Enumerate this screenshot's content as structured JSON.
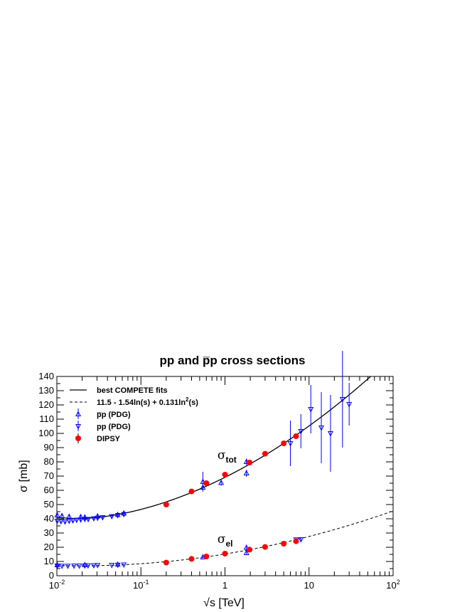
{
  "chart_data": {
    "type": "scatter",
    "title": "pp and p̅p cross sections",
    "xlabel": "√s [TeV]",
    "ylabel": "σ [mb]",
    "xscale": "log",
    "xlim": [
      0.01,
      100
    ],
    "ylim": [
      0,
      140
    ],
    "x_ticks": [
      {
        "value": 0.01,
        "base": "10",
        "exp": "-2"
      },
      {
        "value": 0.1,
        "base": "10",
        "exp": "-1"
      },
      {
        "value": 1,
        "base": "1",
        "exp": ""
      },
      {
        "value": 10,
        "base": "10",
        "exp": ""
      },
      {
        "value": 100,
        "base": "10",
        "exp": "2"
      }
    ],
    "y_ticks": [
      0,
      10,
      20,
      30,
      40,
      50,
      60,
      70,
      80,
      90,
      100,
      110,
      120,
      130,
      140
    ],
    "legend_position": "top-left",
    "legend": [
      {
        "label": "best COMPETE fits",
        "style": "solid-line"
      },
      {
        "label_main": "11.5 - 1.54ln(s) + 0.131ln",
        "label_sup": "2",
        "label_tail": "(s)",
        "style": "dashed-line"
      },
      {
        "label": "p̅p (PDG)",
        "style": "triangle-up"
      },
      {
        "label": "pp (PDG)",
        "style": "triangle-down"
      },
      {
        "label": "DIPSY",
        "style": "red-circle"
      }
    ],
    "annotations": [
      {
        "main": "σ",
        "sub": "tot",
        "x": 0.95,
        "y": 82
      },
      {
        "main": "σ",
        "sub": "el",
        "x": 0.95,
        "y": 23
      }
    ],
    "series": [
      {
        "name": "DIPSY",
        "color": "#ff0000",
        "marker": "circle",
        "points": [
          [
            0.2,
            50.0
          ],
          [
            0.4,
            59.2
          ],
          [
            0.6,
            65.0
          ],
          [
            1.0,
            71.0
          ],
          [
            1.96,
            79.5
          ],
          [
            3.0,
            85.7
          ],
          [
            5.0,
            93.0
          ],
          [
            7.0,
            98.0
          ],
          [
            0.2,
            9.2
          ],
          [
            0.4,
            11.8
          ],
          [
            0.6,
            13.5
          ],
          [
            1.0,
            15.5
          ],
          [
            1.96,
            18.3
          ],
          [
            3.0,
            20.2
          ],
          [
            5.0,
            22.5
          ],
          [
            7.0,
            24.2
          ]
        ]
      },
      {
        "name": "pp (PDG)",
        "color": "#0000ff",
        "marker": "triangle-down",
        "points": [
          {
            "x": 0.0101,
            "y": 38.5,
            "e": 1.2
          },
          {
            "x": 0.0112,
            "y": 38.2,
            "e": 1.0
          },
          {
            "x": 0.0125,
            "y": 38.0,
            "e": 1.0
          },
          {
            "x": 0.014,
            "y": 38.5,
            "e": 1.0
          },
          {
            "x": 0.0155,
            "y": 38.8,
            "e": 1.0
          },
          {
            "x": 0.0172,
            "y": 39.2,
            "e": 1.0
          },
          {
            "x": 0.0192,
            "y": 39.4,
            "e": 1.0
          },
          {
            "x": 0.0215,
            "y": 39.8,
            "e": 1.0
          },
          {
            "x": 0.0236,
            "y": 39.8,
            "e": 1.0
          },
          {
            "x": 0.0275,
            "y": 40.3,
            "e": 1.0
          },
          {
            "x": 0.0305,
            "y": 40.6,
            "e": 1.0
          },
          {
            "x": 0.035,
            "y": 41.0,
            "e": 1.0
          },
          {
            "x": 0.045,
            "y": 41.8,
            "e": 1.0
          },
          {
            "x": 0.053,
            "y": 42.5,
            "e": 1.0
          },
          {
            "x": 0.0627,
            "y": 43.2,
            "e": 1.5
          },
          {
            "x": 6.0,
            "y": 93.0,
            "e": 16.0
          },
          {
            "x": 8.0,
            "y": 101.5,
            "e": 12.0
          },
          {
            "x": 10.5,
            "y": 117.0,
            "e": 17.0
          },
          {
            "x": 14.0,
            "y": 104.0,
            "e": 25.0
          },
          {
            "x": 18.0,
            "y": 100.0,
            "e": 27.0
          },
          {
            "x": 25.0,
            "y": 124.0,
            "e": 34.0
          },
          {
            "x": 30.0,
            "y": 120.5,
            "e": 15.0
          },
          {
            "x": 0.0101,
            "y": 7.0,
            "e": 0.6
          },
          {
            "x": 0.0115,
            "y": 6.9,
            "e": 0.5
          },
          {
            "x": 0.0135,
            "y": 6.9,
            "e": 0.5
          },
          {
            "x": 0.016,
            "y": 7.0,
            "e": 0.5
          },
          {
            "x": 0.0185,
            "y": 7.0,
            "e": 0.5
          },
          {
            "x": 0.0215,
            "y": 7.1,
            "e": 0.5
          },
          {
            "x": 0.0235,
            "y": 7.2,
            "e": 0.5
          },
          {
            "x": 0.0275,
            "y": 7.3,
            "e": 0.5
          },
          {
            "x": 0.0305,
            "y": 7.4,
            "e": 0.5
          },
          {
            "x": 0.045,
            "y": 7.5,
            "e": 0.5
          },
          {
            "x": 0.053,
            "y": 7.6,
            "e": 0.5
          },
          {
            "x": 0.0627,
            "y": 7.8,
            "e": 0.5
          },
          {
            "x": 7.0,
            "y": 25.4,
            "e": 1.0
          },
          {
            "x": 8.0,
            "y": 25.5,
            "e": 1.0
          }
        ]
      },
      {
        "name": "p̅p (PDG)",
        "color": "#0000ff",
        "marker": "triangle-up",
        "points": [
          {
            "x": 0.0101,
            "y": 42.5,
            "e": 1.5
          },
          {
            "x": 0.0115,
            "y": 42.0,
            "e": 1.5
          },
          {
            "x": 0.014,
            "y": 41.5,
            "e": 1.5
          },
          {
            "x": 0.0192,
            "y": 41.3,
            "e": 1.5
          },
          {
            "x": 0.0215,
            "y": 41.0,
            "e": 1.5
          },
          {
            "x": 0.0305,
            "y": 41.8,
            "e": 1.5
          },
          {
            "x": 0.053,
            "y": 42.8,
            "e": 1.5
          },
          {
            "x": 0.0627,
            "y": 43.8,
            "e": 2.0
          },
          {
            "x": 0.546,
            "y": 62.0,
            "e": 2.0
          },
          {
            "x": 0.546,
            "y": 66.0,
            "e": 7.0
          },
          {
            "x": 0.9,
            "y": 65.3,
            "e": 2.0
          },
          {
            "x": 1.8,
            "y": 72.0,
            "e": 2.5
          },
          {
            "x": 1.8,
            "y": 80.0,
            "e": 2.3
          },
          {
            "x": 0.0101,
            "y": 7.5,
            "e": 0.6
          },
          {
            "x": 0.0215,
            "y": 7.6,
            "e": 0.5
          },
          {
            "x": 0.053,
            "y": 7.9,
            "e": 0.5
          },
          {
            "x": 0.546,
            "y": 13.0,
            "e": 0.8
          },
          {
            "x": 1.8,
            "y": 16.0,
            "e": 1.0
          },
          {
            "x": 1.8,
            "y": 19.7,
            "e": 0.9
          }
        ]
      }
    ],
    "fits": [
      {
        "name": "best COMPETE fits",
        "style": "solid",
        "target": "total"
      },
      {
        "name": "11.5 - 1.54ln(s) + 0.131ln2(s)",
        "style": "dashed",
        "target": "elastic"
      }
    ]
  }
}
